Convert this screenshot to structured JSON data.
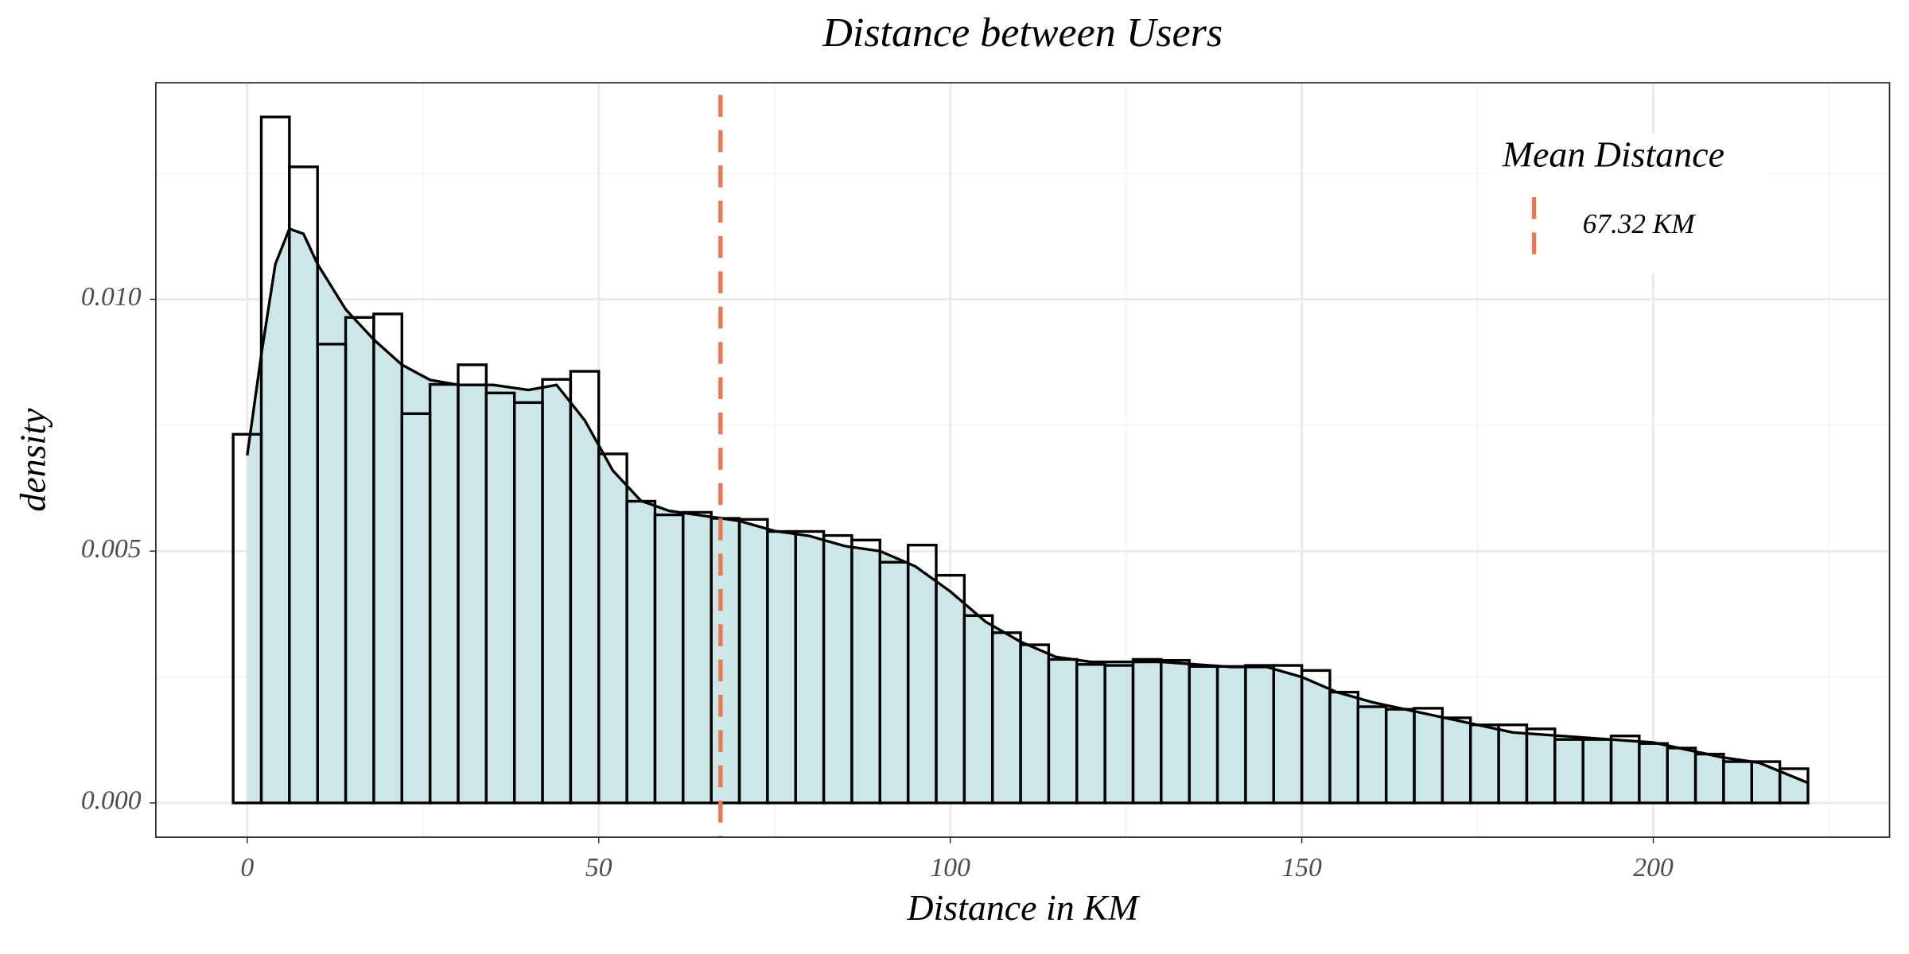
{
  "chart_data": {
    "type": "histogram",
    "title": "Distance between Users",
    "x_label": "Distance in KM",
    "y_label": "density",
    "bins": [
      -2,
      2,
      6,
      10,
      14,
      18,
      22,
      26,
      30,
      34,
      38,
      42,
      46,
      50,
      54,
      58,
      62,
      66,
      70,
      74,
      78,
      82,
      86,
      90,
      94,
      98,
      102,
      106,
      110,
      114,
      118,
      122,
      126,
      130,
      134,
      138,
      142,
      146,
      150,
      154,
      158,
      162,
      166,
      170,
      174,
      178,
      182,
      186,
      190,
      194,
      198,
      202,
      206,
      210,
      214,
      218,
      222
    ],
    "values": [
      0.00732,
      0.01362,
      0.01263,
      0.00911,
      0.00964,
      0.00971,
      0.00773,
      0.00831,
      0.0087,
      0.00814,
      0.00795,
      0.00841,
      0.00857,
      0.00693,
      0.00599,
      0.00572,
      0.00577,
      0.00565,
      0.00563,
      0.00539,
      0.00539,
      0.00531,
      0.00522,
      0.00478,
      0.00512,
      0.00452,
      0.00372,
      0.00338,
      0.00314,
      0.00285,
      0.00275,
      0.00273,
      0.00285,
      0.00283,
      0.00271,
      0.00271,
      0.00273,
      0.00273,
      0.00263,
      0.0022,
      0.00191,
      0.00186,
      0.00188,
      0.00169,
      0.00155,
      0.00155,
      0.00147,
      0.00126,
      0.00126,
      0.00133,
      0.00118,
      0.00109,
      0.00097,
      0.00082,
      0.00082,
      0.00068
    ],
    "bar_outline": "#000000",
    "density": {
      "x": [
        0,
        2,
        4,
        6,
        8,
        10,
        14,
        18,
        22,
        26,
        30,
        35,
        40,
        44,
        48,
        52,
        56,
        60,
        65,
        70,
        75,
        80,
        85,
        90,
        95,
        100,
        105,
        110,
        115,
        120,
        130,
        140,
        145,
        150,
        155,
        160,
        170,
        180,
        190,
        200,
        210,
        215,
        222
      ],
      "values": [
        0.0069,
        0.0089,
        0.0107,
        0.0114,
        0.0113,
        0.0107,
        0.0098,
        0.0092,
        0.0087,
        0.0084,
        0.0083,
        0.0083,
        0.0082,
        0.0083,
        0.0076,
        0.0066,
        0.006,
        0.0058,
        0.0057,
        0.0056,
        0.0054,
        0.0053,
        0.0051,
        0.005,
        0.0047,
        0.0042,
        0.0036,
        0.0032,
        0.0029,
        0.0028,
        0.0028,
        0.0027,
        0.0027,
        0.0025,
        0.0022,
        0.002,
        0.0017,
        0.0014,
        0.0013,
        0.0012,
        0.0009,
        0.0008,
        0.0004
      ],
      "color": "#000000",
      "fill": "#cde6e8"
    },
    "mean_line": {
      "value": 67.32,
      "label": "67.32 KM",
      "color": "#e8784f"
    },
    "legend": {
      "title": "Mean Distance",
      "position": "top-right"
    },
    "xlim": [
      -13,
      233.6
    ],
    "ylim": [
      -0.00068,
      0.0143
    ],
    "xticks": [
      0,
      50,
      100,
      150,
      200
    ],
    "x_minor_ticks": [
      25,
      75,
      125,
      175,
      225
    ],
    "yticks": [
      {
        "value": 0,
        "label": "0.000"
      },
      {
        "value": 0.005,
        "label": "0.005"
      },
      {
        "value": 0.01,
        "label": "0.010"
      }
    ],
    "y_minor_ticks": [
      0.0025,
      0.0075,
      0.0125
    ],
    "grid": true
  }
}
